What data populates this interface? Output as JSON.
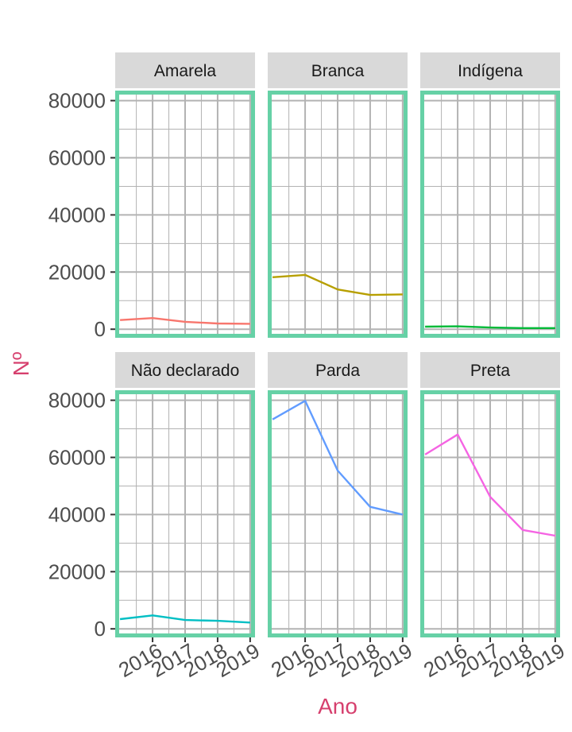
{
  "chart_data": {
    "type": "line",
    "xlabel": "Ano",
    "ylabel": "Nº",
    "x": [
      2015,
      2016,
      2017,
      2018,
      2019
    ],
    "x_ticks": [
      "2016",
      "2017",
      "2018",
      "2019"
    ],
    "x_tick_values": [
      2016,
      2017,
      2018,
      2019
    ],
    "xlim": [
      2014.85,
      2019.15
    ],
    "ylim": [
      -3000,
      83500
    ],
    "y_ticks": [
      "0",
      "20000",
      "40000",
      "60000",
      "80000"
    ],
    "y_tick_values": [
      0,
      20000,
      40000,
      60000,
      80000
    ],
    "grid": true,
    "facets": [
      "Amarela",
      "Branca",
      "Indígena",
      "Não declarado",
      "Parda",
      "Preta"
    ],
    "series": [
      {
        "values": [
          3200,
          3900,
          2600,
          2000,
          1900
        ]
      },
      {
        "values": [
          18200,
          19000,
          13900,
          12000,
          12200
        ]
      },
      {
        "values": [
          900,
          1000,
          600,
          400,
          400
        ]
      },
      {
        "values": [
          3400,
          4700,
          3100,
          2800,
          2200
        ]
      },
      {
        "values": [
          73300,
          79800,
          55400,
          42700,
          40000
        ]
      },
      {
        "values": [
          61000,
          68000,
          46200,
          34600,
          32600
        ]
      }
    ],
    "colors": {
      "series": [
        "#F8766D",
        "#B79F00",
        "#00BA38",
        "#00BFC4",
        "#619CFF",
        "#F564E3"
      ],
      "panel_border": "#66D1A6",
      "strip_background": "#D9D9D9",
      "grid": "#B3B3B3",
      "axis_title": "#D6406E"
    }
  }
}
